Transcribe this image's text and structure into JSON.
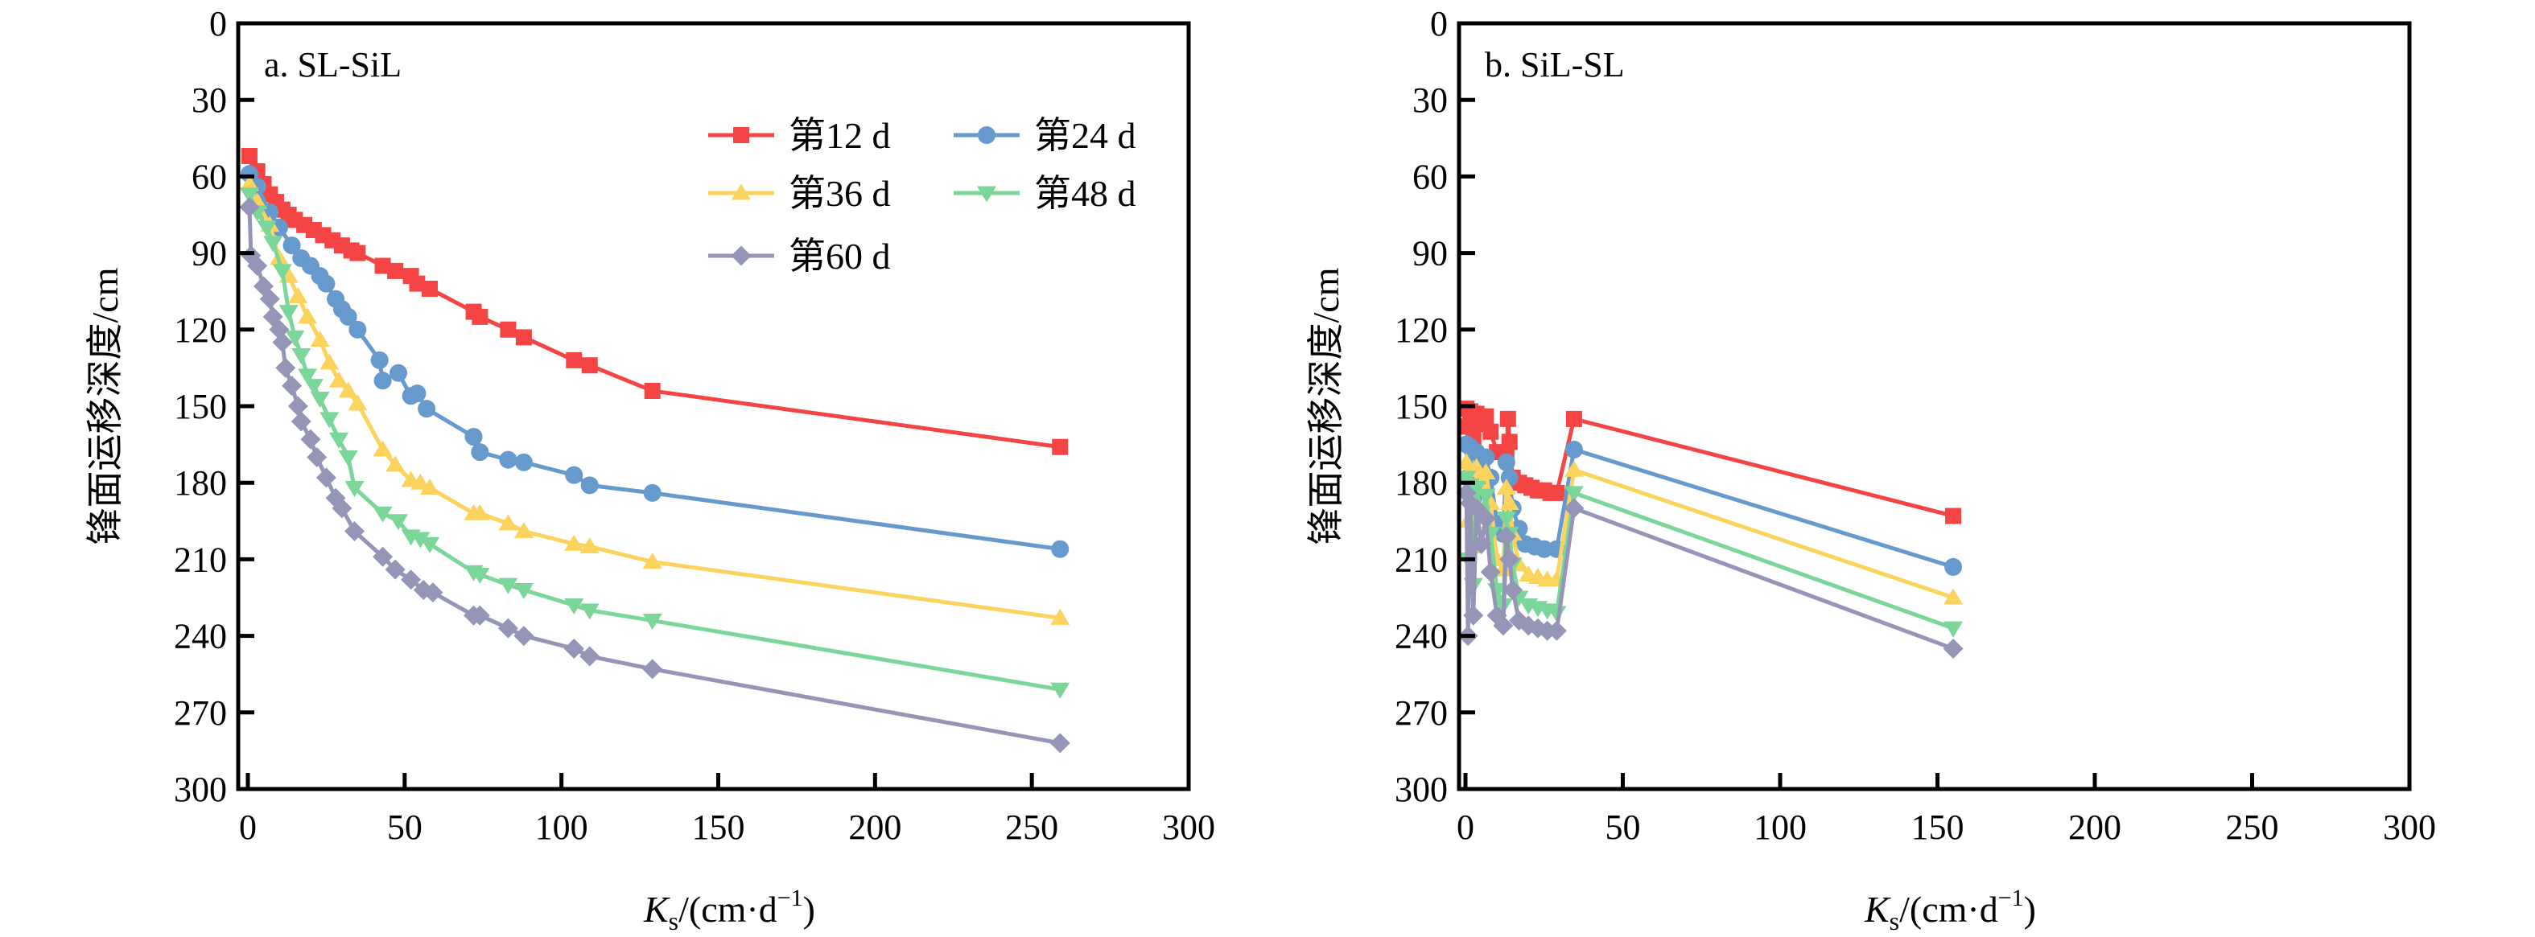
{
  "chart_data": [
    {
      "type": "line",
      "panel_label": "a. SL-SiL",
      "xlabel": {
        "main": "K",
        "sub": "s",
        "rest": "/(cm·d",
        "sup": "−1",
        "close": ")"
      },
      "ylabel": "锋面运移深度/cm",
      "xlim": [
        0,
        300
      ],
      "ylim": [
        0,
        300
      ],
      "y_inverted": true,
      "xticks": [
        0,
        50,
        100,
        150,
        200,
        250,
        300
      ],
      "yticks": [
        0,
        30,
        60,
        90,
        120,
        150,
        180,
        210,
        240,
        270,
        300
      ],
      "legend_position": "top-right",
      "series": [
        {
          "name": "第12 d",
          "color": "#f44444",
          "marker": "square",
          "x": [
            0.5,
            3,
            5,
            7,
            9,
            11,
            13,
            15,
            18,
            21,
            24,
            27,
            30,
            33,
            35,
            43,
            47,
            52,
            54,
            58,
            72,
            74,
            83,
            88,
            104,
            109,
            129,
            259
          ],
          "y": [
            52,
            58,
            63,
            67,
            70,
            73,
            75,
            77,
            79,
            81,
            83,
            85,
            87,
            89,
            90,
            95,
            97,
            99,
            102,
            104,
            113,
            115,
            120,
            123,
            132,
            134,
            144,
            166
          ]
        },
        {
          "name": "第24 d",
          "color": "#6699cc",
          "marker": "circle",
          "x": [
            0.5,
            3,
            7,
            10,
            14,
            17,
            20,
            23,
            25,
            28,
            30,
            32,
            35,
            42,
            43,
            48,
            52,
            54,
            57,
            72,
            74,
            83,
            88,
            104,
            109,
            129,
            259
          ],
          "y": [
            59,
            64,
            74,
            80,
            87,
            92,
            95,
            99,
            102,
            108,
            112,
            115,
            120,
            132,
            140,
            137,
            146,
            145,
            151,
            162,
            168,
            171,
            172,
            177,
            181,
            184,
            206
          ]
        },
        {
          "name": "第36 d",
          "color": "#fcd35c",
          "marker": "triangle-up",
          "x": [
            0.5,
            3,
            7,
            10,
            13,
            16,
            19,
            23,
            26,
            29,
            32,
            35,
            43,
            47,
            52,
            55,
            58,
            72,
            74,
            83,
            88,
            104,
            109,
            129,
            259
          ],
          "y": [
            63,
            70,
            79,
            92,
            99,
            107,
            115,
            124,
            133,
            140,
            144,
            149,
            167,
            173,
            179,
            180,
            182,
            192,
            192,
            196,
            199,
            204,
            205,
            211,
            233
          ]
        },
        {
          "name": "第48 d",
          "color": "#7bd69a",
          "marker": "triangle-down",
          "x": [
            0.5,
            3,
            6,
            8,
            11,
            13,
            15,
            17,
            19,
            21,
            23,
            26,
            29,
            32,
            34,
            43,
            48,
            52,
            55,
            58,
            72,
            74,
            83,
            88,
            104,
            109,
            129,
            259
          ],
          "y": [
            67,
            74,
            80,
            86,
            97,
            113,
            123,
            130,
            138,
            142,
            147,
            155,
            163,
            170,
            182,
            192,
            195,
            201,
            202,
            204,
            215,
            216,
            220,
            222,
            228,
            230,
            234,
            261
          ]
        },
        {
          "name": "第60 d",
          "color": "#9595b8",
          "marker": "diamond",
          "x": [
            0.5,
            1,
            3,
            5,
            7,
            8,
            10,
            11,
            12,
            14,
            16,
            17,
            20,
            22,
            25,
            28,
            30,
            34,
            43,
            47,
            52,
            56,
            59,
            72,
            74,
            83,
            88,
            104,
            109,
            129,
            259
          ],
          "y": [
            72,
            91,
            95,
            103,
            108,
            115,
            120,
            125,
            135,
            142,
            150,
            156,
            163,
            170,
            178,
            186,
            190,
            199,
            209,
            214,
            218,
            222,
            223,
            232,
            232,
            237,
            240,
            245,
            248,
            253,
            282
          ]
        }
      ]
    },
    {
      "type": "line",
      "panel_label": "b. SiL-SL",
      "xlabel": {
        "main": "K",
        "sub": "s",
        "rest": "/(cm·d",
        "sup": "−1",
        "close": ")"
      },
      "ylabel": "锋面运移深度/cm",
      "xlim": [
        0,
        300
      ],
      "ylim": [
        0,
        300
      ],
      "y_inverted": true,
      "xticks": [
        0,
        50,
        100,
        150,
        200,
        250,
        300
      ],
      "yticks": [
        0,
        30,
        60,
        90,
        120,
        150,
        180,
        210,
        240,
        270,
        300
      ],
      "series": [
        {
          "name": "第12 d",
          "color": "#f44444",
          "marker": "square",
          "x": [
            0.3,
            0.8,
            1.5,
            2.5,
            3.5,
            5,
            6.5,
            8,
            10,
            13,
            13.5,
            14,
            15,
            17,
            19,
            21,
            23,
            25,
            27,
            29,
            34.5,
            155
          ],
          "y": [
            151,
            158,
            152,
            162,
            153,
            157,
            154,
            160,
            168,
            170,
            155,
            164,
            178,
            180,
            181,
            182,
            183,
            183,
            184,
            184,
            155,
            193
          ]
        },
        {
          "name": "第24 d",
          "color": "#6699cc",
          "marker": "circle",
          "x": [
            0.3,
            0.8,
            1.5,
            2.5,
            3.5,
            5,
            6.5,
            8,
            10,
            12,
            13,
            14,
            15,
            17,
            19,
            22,
            25,
            29,
            34.5,
            155
          ],
          "y": [
            165,
            178,
            166,
            186,
            168,
            175,
            170,
            178,
            196,
            200,
            172,
            178,
            190,
            198,
            204,
            205,
            206,
            206,
            167,
            213
          ]
        },
        {
          "name": "第36 d",
          "color": "#fcd35c",
          "marker": "triangle-up",
          "x": [
            0.3,
            0.8,
            1.5,
            2.5,
            3.5,
            5,
            6.5,
            8,
            10,
            12,
            13,
            14,
            15,
            17,
            20,
            23,
            26,
            29,
            34.5,
            155
          ],
          "y": [
            172,
            195,
            175,
            205,
            174,
            182,
            176,
            188,
            210,
            214,
            182,
            188,
            200,
            212,
            216,
            217,
            218,
            218,
            175,
            225
          ]
        },
        {
          "name": "第48 d",
          "color": "#7bd69a",
          "marker": "triangle-down",
          "x": [
            0.3,
            0.8,
            1.5,
            2.5,
            3.5,
            5,
            6.5,
            8,
            10,
            12,
            13,
            14,
            15,
            17,
            20,
            23,
            26,
            29,
            34.5,
            155
          ],
          "y": [
            178,
            210,
            181,
            220,
            182,
            192,
            185,
            200,
            222,
            228,
            194,
            200,
            212,
            225,
            228,
            229,
            230,
            231,
            184,
            237
          ]
        },
        {
          "name": "第60 d",
          "color": "#9595b8",
          "marker": "diamond",
          "x": [
            0.3,
            0.8,
            1.5,
            2.5,
            3.5,
            5,
            6.5,
            8,
            10,
            12,
            13,
            14,
            15,
            17,
            20,
            23,
            26,
            29,
            34.5,
            155
          ],
          "y": [
            184,
            240,
            188,
            232,
            190,
            204,
            194,
            215,
            232,
            236,
            201,
            210,
            222,
            234,
            236,
            237,
            238,
            238,
            190,
            245
          ]
        }
      ]
    }
  ]
}
